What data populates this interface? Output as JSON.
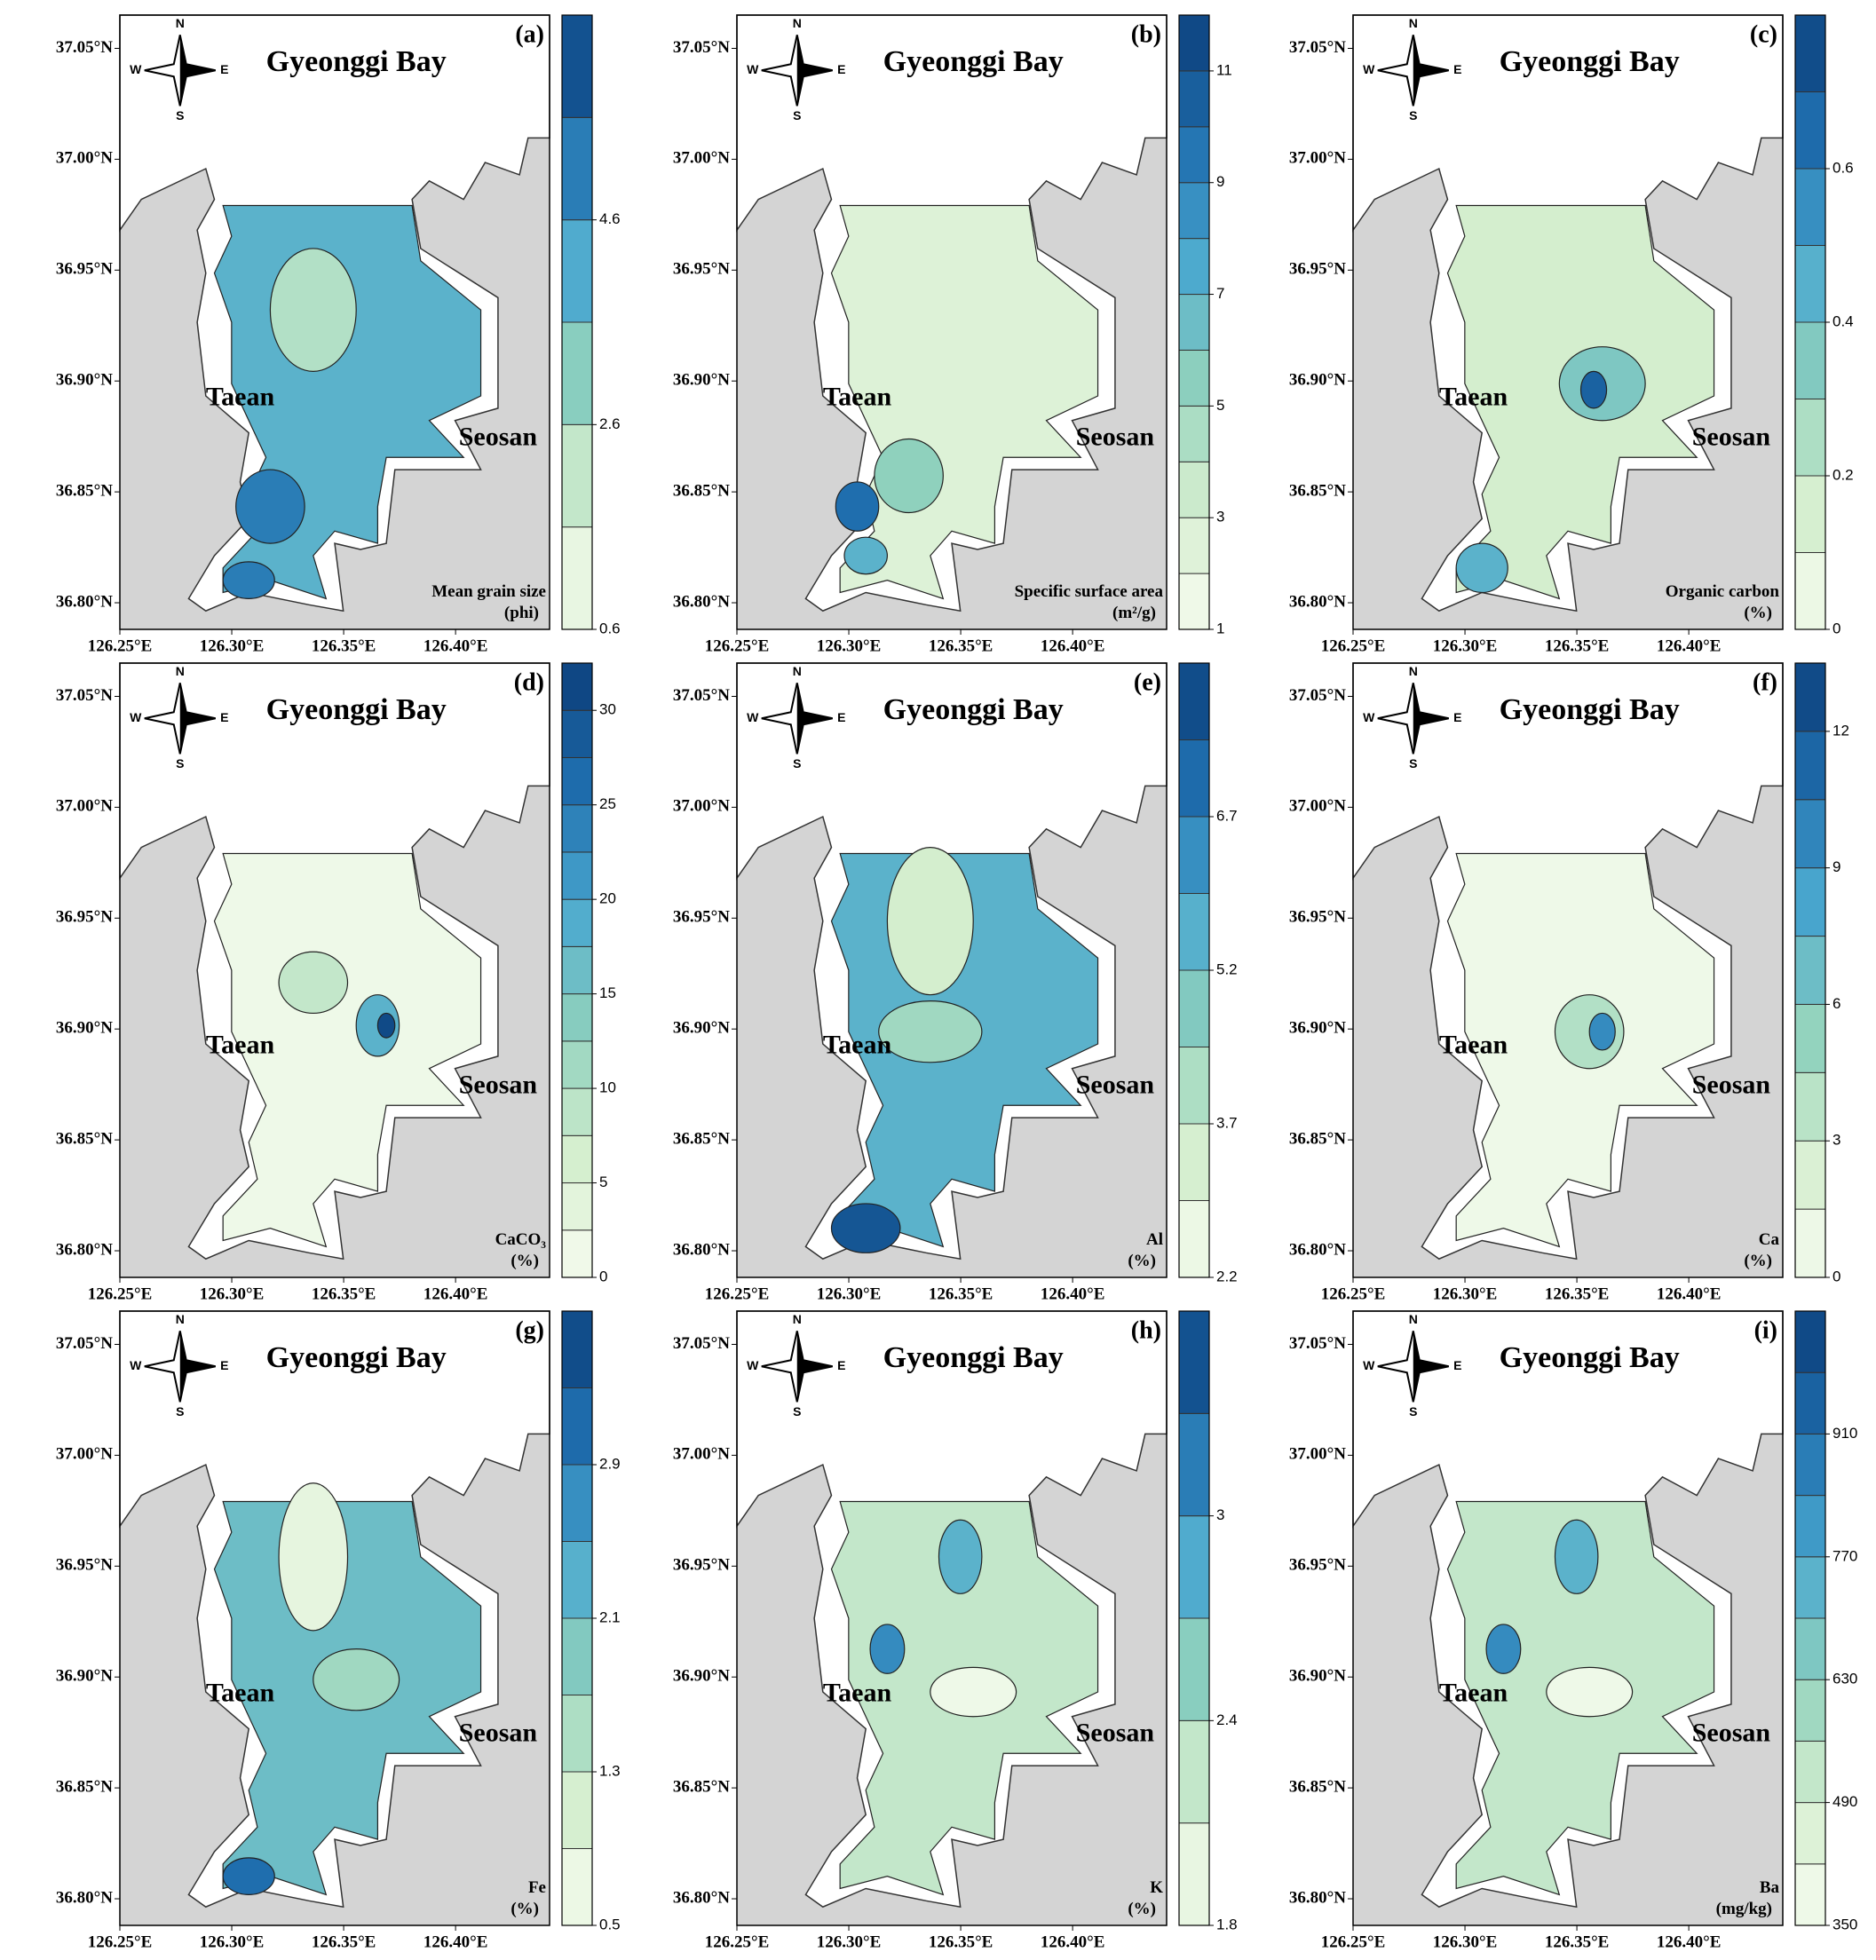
{
  "latlim": [
    36.788,
    37.065
  ],
  "lonlim": [
    126.25,
    126.442
  ],
  "latticks": [
    {
      "value": 37.05,
      "label": "37.05°N"
    },
    {
      "value": 37.0,
      "label": "37.00°N"
    },
    {
      "value": 36.95,
      "label": "36.95°N"
    },
    {
      "value": 36.9,
      "label": "36.90°N"
    },
    {
      "value": 36.85,
      "label": "36.85°N"
    },
    {
      "value": 36.8,
      "label": "36.80°N"
    }
  ],
  "lonticks": [
    {
      "value": 126.25,
      "label": "126.25°E"
    },
    {
      "value": 126.3,
      "label": "126.30°E"
    },
    {
      "value": 126.35,
      "label": "126.35°E"
    },
    {
      "value": 126.4,
      "label": "126.40°E"
    }
  ],
  "title": "Gyeonggi Bay",
  "places": [
    "Taean",
    "Seosan"
  ],
  "compass": {
    "n": "N",
    "s": "S",
    "e": "E",
    "w": "W"
  },
  "palette": [
    "#f7fcf0",
    "#d4eece",
    "#8fd1bd",
    "#4aa8cf",
    "#1f6eae",
    "#0b3e7a"
  ],
  "panels": [
    {
      "label": "(a)",
      "variable": "Mean grain size",
      "unit": "(phi)",
      "colorbar": {
        "clim": [
          0.6,
          6.6
        ],
        "bands": 6,
        "ticks": [
          0.6,
          2.6,
          4.6
        ]
      }
    },
    {
      "label": "(b)",
      "variable": "Specific surface area",
      "unit": "(m²/g)",
      "colorbar": {
        "clim": [
          1,
          12
        ],
        "bands": 11,
        "ticks": [
          1,
          3,
          5,
          7,
          9,
          11
        ]
      }
    },
    {
      "label": "(c)",
      "variable": "Organic carbon",
      "unit": "(%)",
      "colorbar": {
        "clim": [
          0,
          0.8
        ],
        "bands": 8,
        "ticks": [
          0,
          0.2,
          0.4,
          0.6
        ]
      }
    },
    {
      "label": "(d)",
      "variable": "CaCO₃",
      "unit": "(%)",
      "colorbar": {
        "clim": [
          0,
          32.5
        ],
        "bands": 13,
        "ticks": [
          0,
          5,
          10,
          15,
          20,
          25,
          30
        ]
      }
    },
    {
      "label": "(e)",
      "variable": "Al",
      "unit": "(%)",
      "colorbar": {
        "clim": [
          2.2,
          8.2
        ],
        "bands": 8,
        "ticks": [
          2.2,
          3.7,
          5.2,
          6.7
        ]
      }
    },
    {
      "label": "(f)",
      "variable": "Ca",
      "unit": "(%)",
      "colorbar": {
        "clim": [
          0,
          13.5
        ],
        "bands": 9,
        "ticks": [
          0,
          3,
          6,
          9,
          12
        ]
      }
    },
    {
      "label": "(g)",
      "variable": "Fe",
      "unit": "(%)",
      "colorbar": {
        "clim": [
          0.5,
          3.7
        ],
        "bands": 8,
        "ticks": [
          0.5,
          1.3,
          2.1,
          2.9
        ]
      }
    },
    {
      "label": "(h)",
      "variable": "K",
      "unit": "(%)",
      "colorbar": {
        "clim": [
          1.8,
          3.6
        ],
        "bands": 6,
        "ticks": [
          1.8,
          2.4,
          3
        ]
      }
    },
    {
      "label": "(i)",
      "variable": "Ba",
      "unit": "(mg/kg)",
      "colorbar": {
        "clim": [
          350,
          1050
        ],
        "bands": 10,
        "ticks": [
          350,
          490,
          630,
          770,
          910
        ]
      }
    }
  ]
}
